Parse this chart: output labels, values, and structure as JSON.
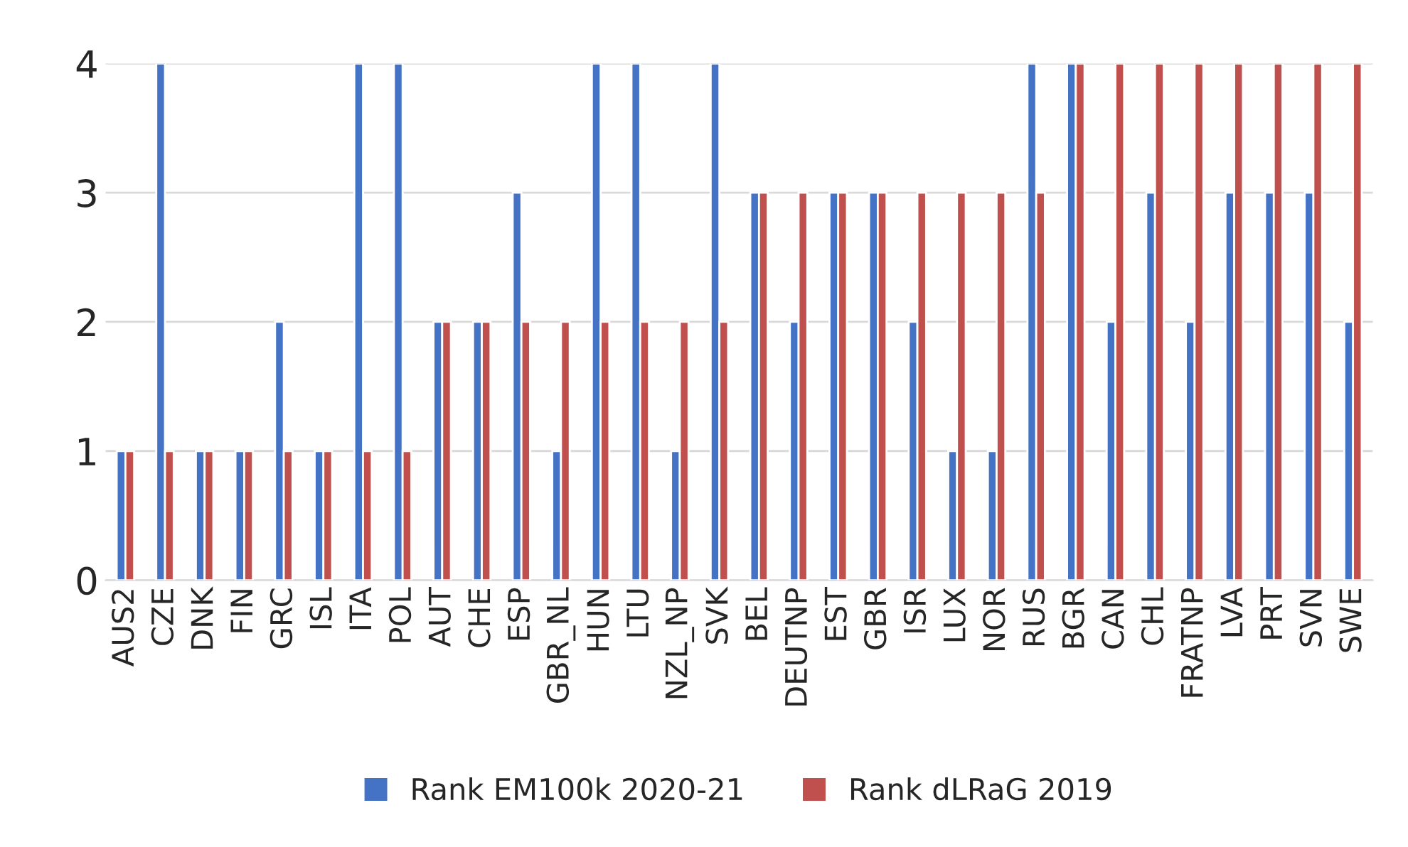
{
  "chart_data": {
    "type": "bar",
    "categories": [
      "AUS2",
      "CZE",
      "DNK",
      "FIN",
      "GRC",
      "ISL",
      "ITA",
      "POL",
      "AUT",
      "CHE",
      "ESP",
      "GBR_NL",
      "HUN",
      "LTU",
      "NZL_NP",
      "SVK",
      "BEL",
      "DEUTNP",
      "EST",
      "GBR",
      "ISR",
      "LUX",
      "NOR",
      "RUS",
      "BGR",
      "CAN",
      "CHL",
      "FRATNP",
      "LVA",
      "PRT",
      "SVN",
      "SWE"
    ],
    "series": [
      {
        "name": "Rank EM100k 2020-21",
        "color": "#4472c4",
        "values": [
          1,
          4,
          1,
          1,
          2,
          1,
          4,
          4,
          2,
          2,
          3,
          1,
          4,
          4,
          1,
          4,
          3,
          2,
          3,
          3,
          2,
          1,
          1,
          4,
          4,
          2,
          3,
          2,
          3,
          3,
          3,
          2
        ]
      },
      {
        "name": "Rank dLRaG 2019",
        "color": "#c0504d",
        "values": [
          1,
          1,
          1,
          1,
          1,
          1,
          1,
          1,
          2,
          2,
          2,
          2,
          2,
          2,
          2,
          2,
          3,
          3,
          3,
          3,
          3,
          3,
          3,
          3,
          4,
          4,
          4,
          4,
          4,
          4,
          4,
          4
        ]
      }
    ],
    "ylim": [
      0,
      4
    ],
    "yticks": [
      0,
      1,
      2,
      3,
      4
    ],
    "grid": "y",
    "legend": "bottom"
  }
}
